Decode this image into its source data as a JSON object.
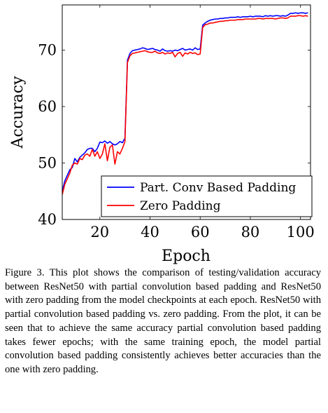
{
  "chart_data": {
    "type": "line",
    "xlabel": "Epoch",
    "ylabel": "Accuracy",
    "xlim": [
      5,
      104
    ],
    "ylim": [
      40,
      78
    ],
    "xticks": [
      20,
      40,
      60,
      80,
      100
    ],
    "yticks": [
      40,
      50,
      60,
      70
    ],
    "grid": false,
    "legend_position": "bottom-right",
    "series": [
      {
        "name": "Part. Conv Based Padding",
        "color": "#0000ff",
        "x": [
          5,
          6,
          7,
          8,
          9,
          10,
          11,
          12,
          13,
          14,
          15,
          16,
          17,
          18,
          19,
          20,
          21,
          22,
          23,
          24,
          25,
          26,
          27,
          28,
          29,
          30,
          31,
          32,
          33,
          34,
          35,
          36,
          37,
          38,
          39,
          40,
          41,
          42,
          43,
          44,
          45,
          46,
          47,
          48,
          49,
          50,
          51,
          52,
          53,
          54,
          55,
          56,
          57,
          58,
          59,
          60,
          61,
          62,
          63,
          64,
          65,
          66,
          67,
          68,
          69,
          70,
          71,
          72,
          73,
          74,
          75,
          76,
          77,
          78,
          79,
          80,
          81,
          82,
          83,
          84,
          85,
          86,
          87,
          88,
          89,
          90,
          91,
          92,
          93,
          94,
          95,
          96,
          97,
          98,
          99,
          100,
          101,
          102,
          103
        ],
        "y": [
          45.0,
          46.8,
          47.8,
          48.8,
          49.2,
          50.8,
          50.2,
          51.0,
          51.4,
          51.8,
          52.4,
          52.6,
          52.6,
          52.0,
          52.6,
          53.7,
          53.6,
          53.9,
          53.5,
          53.8,
          53.4,
          53.2,
          53.4,
          53.8,
          53.6,
          54.4,
          68.2,
          69.4,
          69.9,
          70.0,
          70.1,
          70.2,
          70.4,
          70.3,
          70.1,
          70.2,
          70.3,
          70.1,
          70.0,
          69.8,
          70.2,
          69.9,
          69.8,
          69.9,
          69.8,
          70.0,
          69.9,
          70.1,
          70.3,
          70.0,
          70.1,
          70.2,
          70.0,
          70.4,
          70.1,
          70.2,
          74.4,
          74.8,
          75.1,
          75.3,
          75.4,
          75.5,
          75.5,
          75.6,
          75.6,
          75.7,
          75.7,
          75.8,
          75.8,
          75.8,
          75.9,
          75.8,
          75.9,
          75.9,
          75.9,
          76.0,
          75.9,
          76.0,
          76.0,
          76.0,
          75.9,
          76.1,
          76.0,
          76.1,
          76.0,
          76.1,
          76.1,
          76.0,
          76.1,
          76.0,
          76.2,
          76.5,
          76.5,
          76.6,
          76.5,
          76.6,
          76.6,
          76.5,
          76.6
        ]
      },
      {
        "name": "Zero Padding",
        "color": "#ff0000",
        "x": [
          5,
          6,
          7,
          8,
          9,
          10,
          11,
          12,
          13,
          14,
          15,
          16,
          17,
          18,
          19,
          20,
          21,
          22,
          23,
          24,
          25,
          26,
          27,
          28,
          29,
          30,
          31,
          32,
          33,
          34,
          35,
          36,
          37,
          38,
          39,
          40,
          41,
          42,
          43,
          44,
          45,
          46,
          47,
          48,
          49,
          50,
          51,
          52,
          53,
          54,
          55,
          56,
          57,
          58,
          59,
          60,
          61,
          62,
          63,
          64,
          65,
          66,
          67,
          68,
          69,
          70,
          71,
          72,
          73,
          74,
          75,
          76,
          77,
          78,
          79,
          80,
          81,
          82,
          83,
          84,
          85,
          86,
          87,
          88,
          89,
          90,
          91,
          92,
          93,
          94,
          95,
          96,
          97,
          98,
          99,
          100,
          101,
          102,
          103
        ],
        "y": [
          44.4,
          46.2,
          47.2,
          48.2,
          49.6,
          50.0,
          49.8,
          50.8,
          50.6,
          51.4,
          51.6,
          51.2,
          52.4,
          51.2,
          52.0,
          50.8,
          51.6,
          53.4,
          50.4,
          52.8,
          53.2,
          49.8,
          52.0,
          51.6,
          52.6,
          53.8,
          67.8,
          69.0,
          69.4,
          69.5,
          69.6,
          69.7,
          69.8,
          69.9,
          69.7,
          69.6,
          69.6,
          69.8,
          69.5,
          69.4,
          69.6,
          69.3,
          69.5,
          69.4,
          69.6,
          68.8,
          69.4,
          69.6,
          68.9,
          69.5,
          69.3,
          69.6,
          69.4,
          69.5,
          69.2,
          69.3,
          74.0,
          74.5,
          74.6,
          74.8,
          74.8,
          74.9,
          75.0,
          75.1,
          75.1,
          75.2,
          75.2,
          75.3,
          75.3,
          75.3,
          75.4,
          75.4,
          75.4,
          75.5,
          75.5,
          75.5,
          75.5,
          75.5,
          75.6,
          75.6,
          75.5,
          75.6,
          75.6,
          75.6,
          75.6,
          75.5,
          75.6,
          75.7,
          75.7,
          75.6,
          75.7,
          76.0,
          76.0,
          76.0,
          76.1,
          76.1,
          76.0,
          76.1,
          76.0
        ]
      }
    ]
  },
  "caption": "Figure 3. This plot shows the comparison of testing/validation accuracy between ResNet50 with partial convolution based padding and ResNet50 with zero padding from the model checkpoints at each epoch. ResNet50 with partial convolution based padding vs. zero padding. From the plot, it can be seen that to achieve the same accuracy partial convolution based padding takes fewer epochs; with the same training epoch, the model partial convolution based padding consistently achieves better accuracies than the one with zero padding."
}
